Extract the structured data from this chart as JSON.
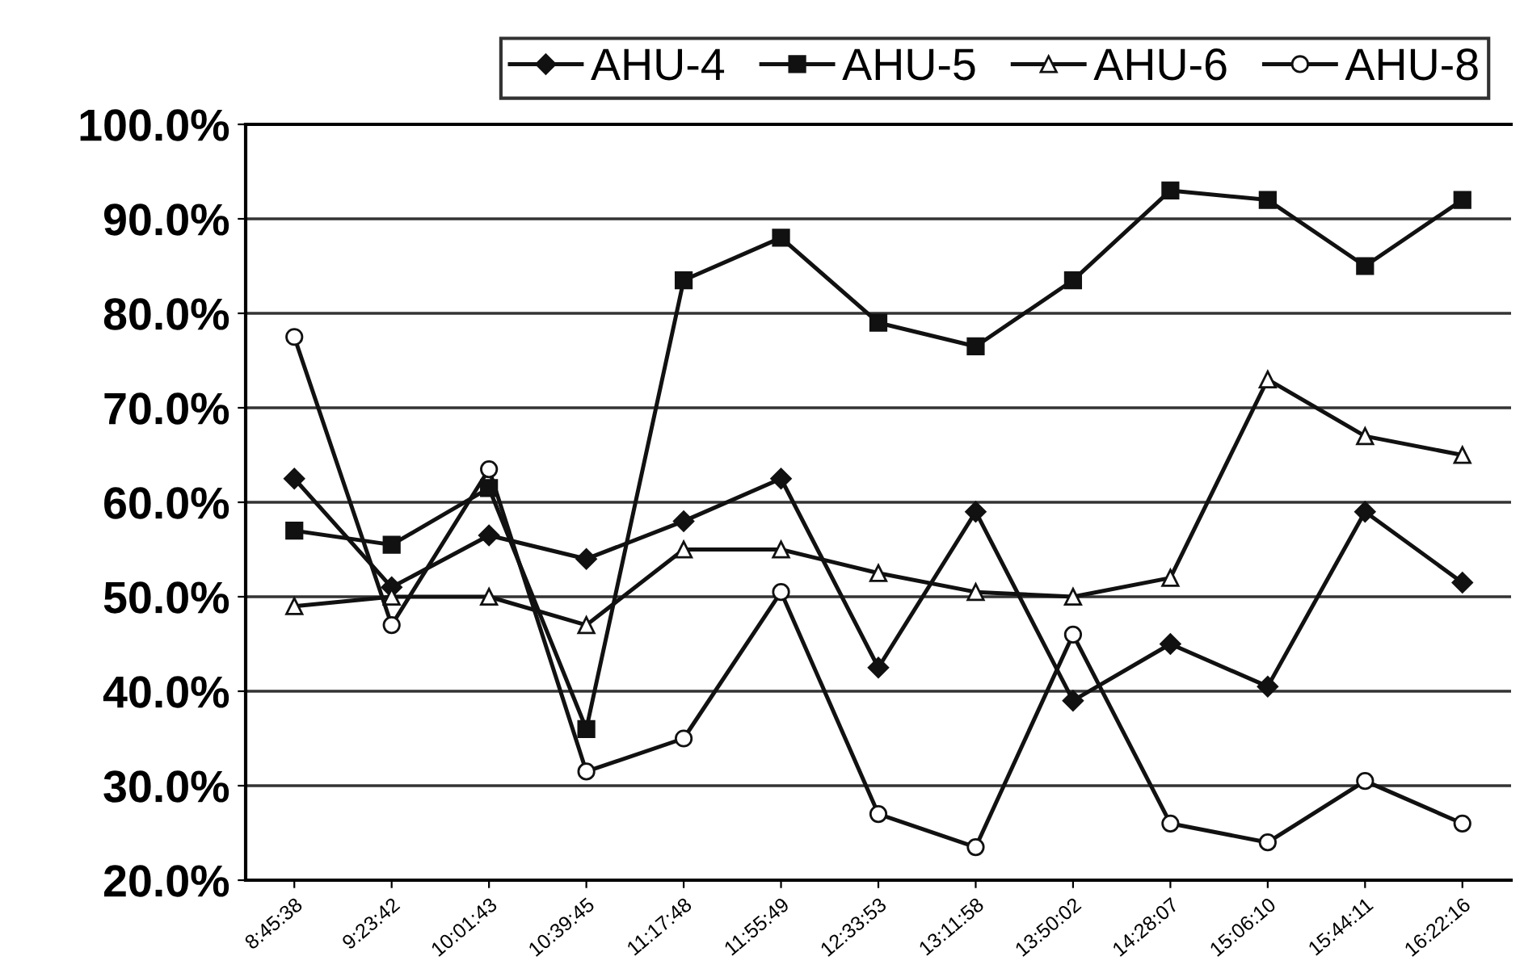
{
  "chart_data": {
    "type": "line",
    "categories": [
      "8:45:38",
      "9:23:42",
      "10:01:43",
      "10:39:45",
      "11:17:48",
      "11:55:49",
      "12:33:53",
      "13:11:58",
      "13:50:02",
      "14:28:07",
      "15:06:10",
      "15:44:11",
      "16:22:16"
    ],
    "series": [
      {
        "name": "AHU-4",
        "color": "#111111",
        "marker": "diamond",
        "values": [
          62.5,
          51,
          56.5,
          54,
          58,
          62.5,
          42.5,
          59,
          39,
          45,
          40.5,
          59,
          51.5
        ]
      },
      {
        "name": "AHU-5",
        "color": "#111111",
        "marker": "square",
        "values": [
          57,
          55.5,
          61.5,
          36,
          83.5,
          88,
          79,
          76.5,
          83.5,
          93,
          92,
          85,
          92
        ]
      },
      {
        "name": "AHU-6",
        "color": "#111111",
        "marker": "triangle",
        "values": [
          49,
          50,
          50,
          47,
          55,
          55,
          52.5,
          50.5,
          50,
          52,
          73,
          67,
          65
        ]
      },
      {
        "name": "AHU-8",
        "color": "#111111",
        "marker": "circle",
        "values": [
          77.5,
          47,
          63.5,
          31.5,
          35,
          50.5,
          27,
          23.5,
          46,
          26,
          24,
          30.5,
          26
        ]
      }
    ],
    "ylim": [
      20,
      100
    ],
    "yticks": [
      {
        "value": 20,
        "label": "20.0%"
      },
      {
        "value": 30,
        "label": "30.0%"
      },
      {
        "value": 40,
        "label": "40.0%"
      },
      {
        "value": 50,
        "label": "50.0%"
      },
      {
        "value": 60,
        "label": "60.0%"
      },
      {
        "value": 70,
        "label": "70.0%"
      },
      {
        "value": 80,
        "label": "80.0%"
      },
      {
        "value": 90,
        "label": "90.0%"
      },
      {
        "value": 100,
        "label": "100.0%"
      }
    ],
    "grid": "y",
    "legend": "top right",
    "line_style": "solid"
  }
}
